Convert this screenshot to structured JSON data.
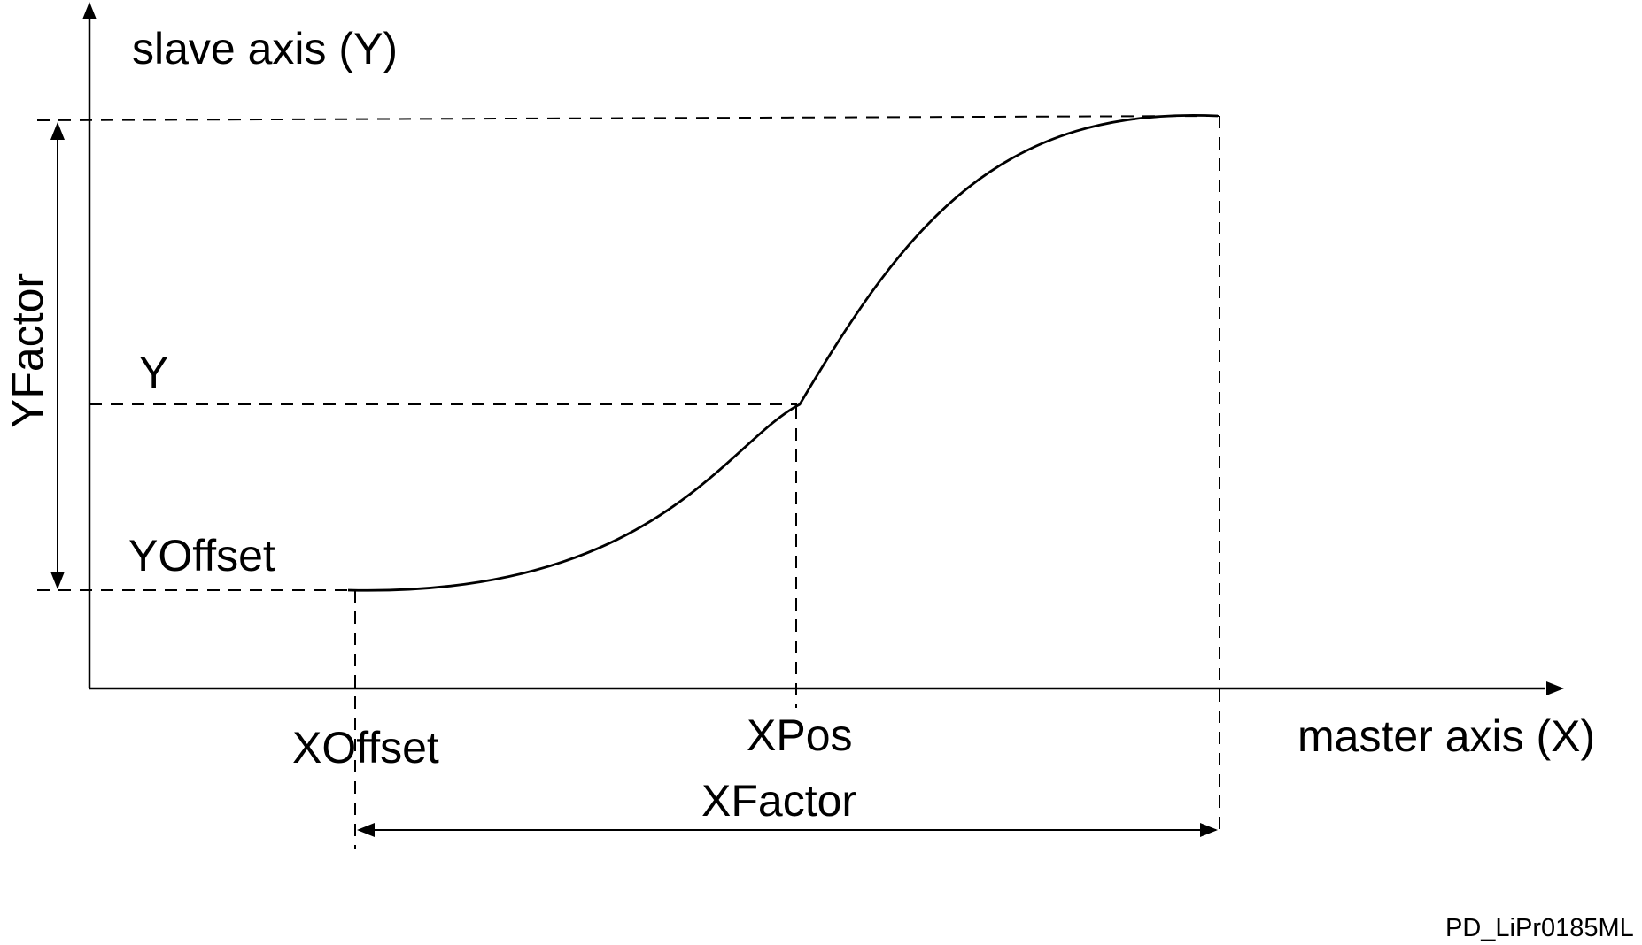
{
  "labels": {
    "y_axis": "slave axis (Y)",
    "x_axis": "master axis (X)",
    "y_factor": "YFactor",
    "y": "Y",
    "y_offset": "YOffset",
    "x_offset": "XOffset",
    "x_pos": "XPos",
    "x_factor": "XFactor",
    "reference": "PD_LiPr0185ML"
  },
  "colors": {
    "line": "#000000",
    "background": "#ffffff"
  }
}
